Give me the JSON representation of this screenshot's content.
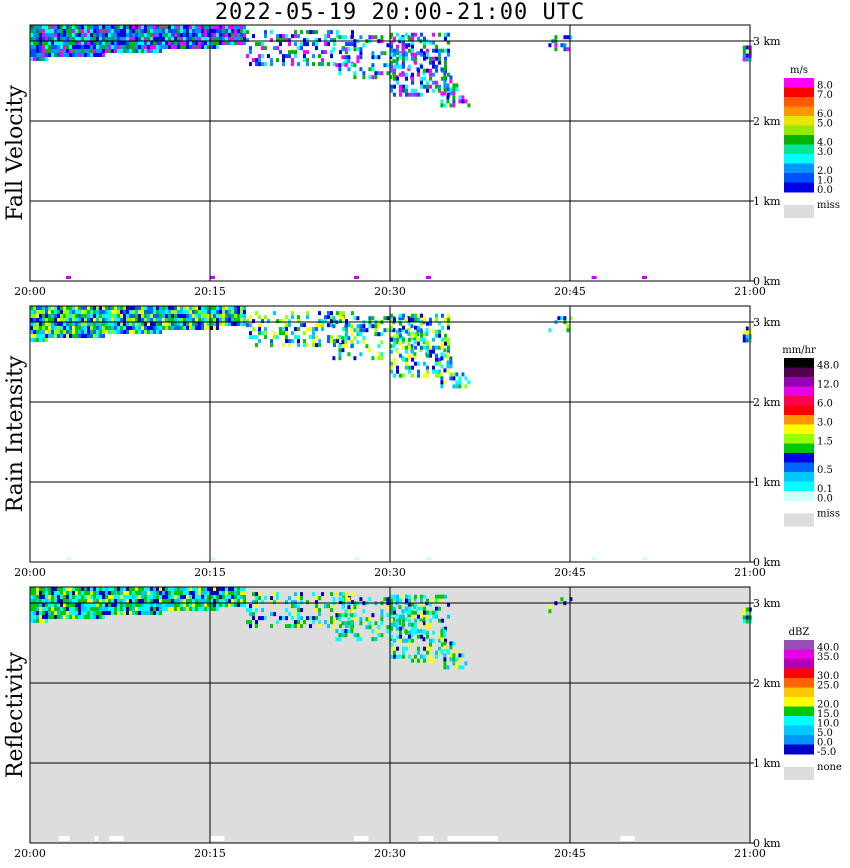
{
  "title": "2022-05-19   20:00-21:00 UTC",
  "chart_data": [
    {
      "type": "heatmap",
      "name": "Fall Velocity",
      "ylabel": "Fall Velocity",
      "x_ticks": [
        "20:00",
        "20:15",
        "20:30",
        "20:45",
        "21:00"
      ],
      "y_ticks": [
        "0 km",
        "1 km",
        "2 km",
        "3 km"
      ],
      "xlim": [
        "20:00",
        "21:00"
      ],
      "ylim_km": [
        0,
        3.2
      ],
      "background": "#ffffff",
      "legend": {
        "unit": "m/s",
        "levels": [
          {
            "label": "8.0",
            "color": "#ff00ff"
          },
          {
            "label": "7.0",
            "color": "#ff0000"
          },
          {
            "label": "",
            "color": "#ff5a00"
          },
          {
            "label": "6.0",
            "color": "#ff9600"
          },
          {
            "label": "5.0",
            "color": "#e6e600"
          },
          {
            "label": "",
            "color": "#96e600"
          },
          {
            "label": "4.0",
            "color": "#00b400"
          },
          {
            "label": "3.0",
            "color": "#00e696"
          },
          {
            "label": "",
            "color": "#00ffff"
          },
          {
            "label": "2.0",
            "color": "#0096ff"
          },
          {
            "label": "1.0",
            "color": "#0050ff"
          },
          {
            "label": "0.0",
            "color": "#0000e6"
          }
        ],
        "missing_label": "miss",
        "missing_color": "#dddddd"
      },
      "echo_colors": [
        "#0000e6",
        "#0050ff",
        "#0096ff",
        "#ff00ff",
        "#00ffff",
        "#00b400"
      ]
    },
    {
      "type": "heatmap",
      "name": "Rain Intensity",
      "ylabel": "Rain Intensity",
      "x_ticks": [
        "20:00",
        "20:15",
        "20:30",
        "20:45",
        "21:00"
      ],
      "y_ticks": [
        "0 km",
        "1 km",
        "2 km",
        "3 km"
      ],
      "xlim": [
        "20:00",
        "21:00"
      ],
      "ylim_km": [
        0,
        3.2
      ],
      "background": "#ffffff",
      "legend": {
        "unit": "mm/hr",
        "levels": [
          {
            "label": "48.0",
            "color": "#000000"
          },
          {
            "label": "",
            "color": "#500050"
          },
          {
            "label": "12.0",
            "color": "#9600b4"
          },
          {
            "label": "",
            "color": "#e600e6"
          },
          {
            "label": "6.0",
            "color": "#ff0050"
          },
          {
            "label": "",
            "color": "#ff0000"
          },
          {
            "label": "3.0",
            "color": "#ff9600"
          },
          {
            "label": "",
            "color": "#ffff00"
          },
          {
            "label": "1.5",
            "color": "#96ff00"
          },
          {
            "label": "",
            "color": "#00c800"
          },
          {
            "label": "",
            "color": "#0000e6"
          },
          {
            "label": "0.5",
            "color": "#0064ff"
          },
          {
            "label": "",
            "color": "#00c8ff"
          },
          {
            "label": "0.1",
            "color": "#00ffff"
          },
          {
            "label": "0.0",
            "color": "#ccffff"
          }
        ],
        "missing_label": "miss",
        "missing_color": "#dddddd"
      },
      "echo_colors": [
        "#0000e6",
        "#0064ff",
        "#00c8ff",
        "#00ffff",
        "#00c800",
        "#ffff00",
        "#96ff00"
      ]
    },
    {
      "type": "heatmap",
      "name": "Reflectivity",
      "ylabel": "Reflectivity",
      "x_ticks": [
        "20:00",
        "20:15",
        "20:30",
        "20:45",
        "21:00"
      ],
      "y_ticks": [
        "0 km",
        "1 km",
        "2 km",
        "3 km"
      ],
      "xlim": [
        "20:00",
        "21:00"
      ],
      "ylim_km": [
        0,
        3.2
      ],
      "background": "#dddddd",
      "legend": {
        "unit": "dBZ",
        "levels": [
          {
            "label": "40.0",
            "color": "#9650b4"
          },
          {
            "label": "35.0",
            "color": "#e600e6"
          },
          {
            "label": "",
            "color": "#b400b4"
          },
          {
            "label": "30.0",
            "color": "#ff0000"
          },
          {
            "label": "25.0",
            "color": "#ff6400"
          },
          {
            "label": "",
            "color": "#ffc800"
          },
          {
            "label": "20.0",
            "color": "#ffff00"
          },
          {
            "label": "15.0",
            "color": "#00c800"
          },
          {
            "label": "10.0",
            "color": "#00ffff"
          },
          {
            "label": "5.0",
            "color": "#00c8ff"
          },
          {
            "label": "0.0",
            "color": "#0096ff"
          },
          {
            "label": "-5.0",
            "color": "#0000c8"
          }
        ],
        "missing_label": "none",
        "missing_color": "#dddddd"
      },
      "echo_colors": [
        "#00ffff",
        "#00c800",
        "#00ffff",
        "#00c8ff",
        "#00c800",
        "#ffff00",
        "#0000c8"
      ]
    }
  ]
}
